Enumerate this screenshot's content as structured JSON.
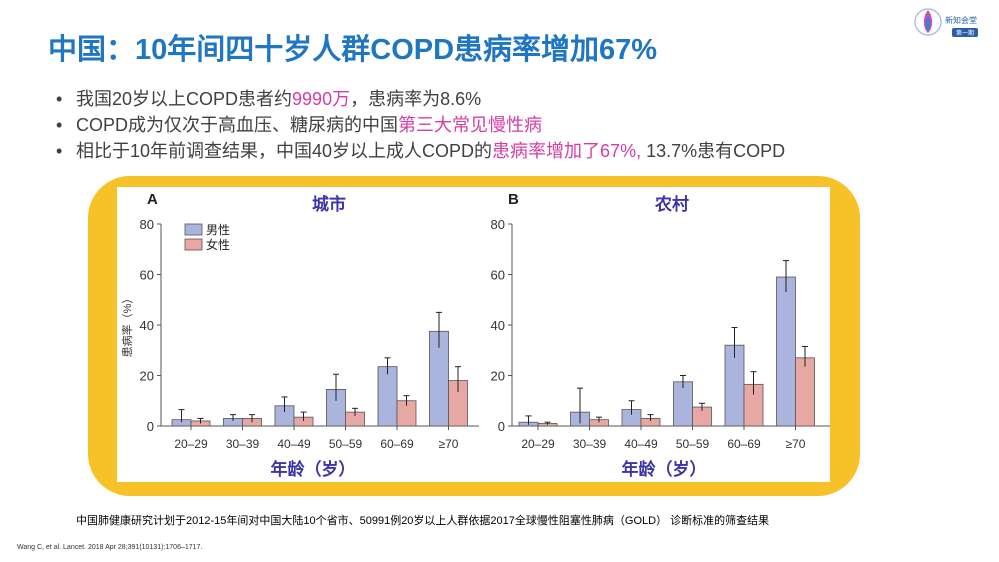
{
  "title": "中国：10年间四十岁人群COPD患病率增加67%",
  "logo": {
    "name": "新知会堂",
    "sub": "第一期"
  },
  "bullets": [
    {
      "prefix": "我国20岁以上COPD患者约",
      "highlight": "9990万",
      "suffix": "，患病率为8.6%"
    },
    {
      "prefix": "COPD成为仅次于高血压、糖尿病的中国",
      "highlight": "第三大常见慢性病",
      "suffix": ""
    },
    {
      "prefix": "相比于10年前调查结果，中国40岁以上成人COPD的",
      "highlight": "患病率增加了67%,",
      "suffix": " 13.7%患有COPD"
    }
  ],
  "bullet_char": "•",
  "colors": {
    "title": "#1f76c2",
    "highlight": "#d63da3",
    "frame": "#f7c12a",
    "male": "#aab4dc",
    "female": "#e7a8a3"
  },
  "chart_data": [
    {
      "type": "bar",
      "panel_label": "A",
      "title": "城市",
      "xlabel": "年龄（岁）",
      "ylabel": "患病率（%）",
      "ylim": [
        0,
        80
      ],
      "yticks": [
        0,
        20,
        40,
        60,
        80
      ],
      "categories": [
        "20–29",
        "30–39",
        "40–49",
        "50–59",
        "60–69",
        "≥70"
      ],
      "legend": [
        "男性",
        "女性"
      ],
      "series": [
        {
          "name": "男性",
          "values": [
            2.5,
            3,
            8,
            14.5,
            23.5,
            37.5
          ],
          "err_low": [
            1.5,
            2,
            5.5,
            10,
            20.5,
            31
          ],
          "err_high": [
            6.5,
            4.5,
            11.5,
            20.5,
            27,
            45
          ]
        },
        {
          "name": "女性",
          "values": [
            2,
            3,
            3.5,
            5.5,
            10,
            18
          ],
          "err_low": [
            1,
            1.5,
            2,
            4,
            8,
            13.5
          ],
          "err_high": [
            3,
            4.5,
            5.5,
            7,
            12,
            23.5
          ]
        }
      ]
    },
    {
      "type": "bar",
      "panel_label": "B",
      "title": "农村",
      "xlabel": "年龄（岁）",
      "ylabel": "",
      "ylim": [
        0,
        80
      ],
      "yticks": [
        0,
        20,
        40,
        60,
        80
      ],
      "categories": [
        "20–29",
        "30–39",
        "40–49",
        "50–59",
        "60–69",
        "≥70"
      ],
      "legend": [],
      "series": [
        {
          "name": "男性",
          "values": [
            1.5,
            5.5,
            6.5,
            17.5,
            32,
            59
          ],
          "err_low": [
            0.5,
            1,
            4.5,
            15,
            27,
            53
          ],
          "err_high": [
            4,
            15,
            10,
            20,
            39,
            65.5
          ]
        },
        {
          "name": "女性",
          "values": [
            1,
            2.5,
            3,
            7.5,
            16.5,
            27
          ],
          "err_low": [
            0.5,
            1.5,
            2,
            6,
            12.5,
            23.5
          ],
          "err_high": [
            1.5,
            3.5,
            4.5,
            9,
            21.5,
            31.5
          ]
        }
      ]
    }
  ],
  "footnote": "中国肺健康研究计划于2012-15年间对中国大陆10个省市、50991例20岁以上人群依据2017全球慢性阻塞性肺病（GOLD） 诊断标准的筛查结果",
  "citation": "Wang C, et al. Lancet. 2018 Apr 28;391(10131):1706–1717."
}
